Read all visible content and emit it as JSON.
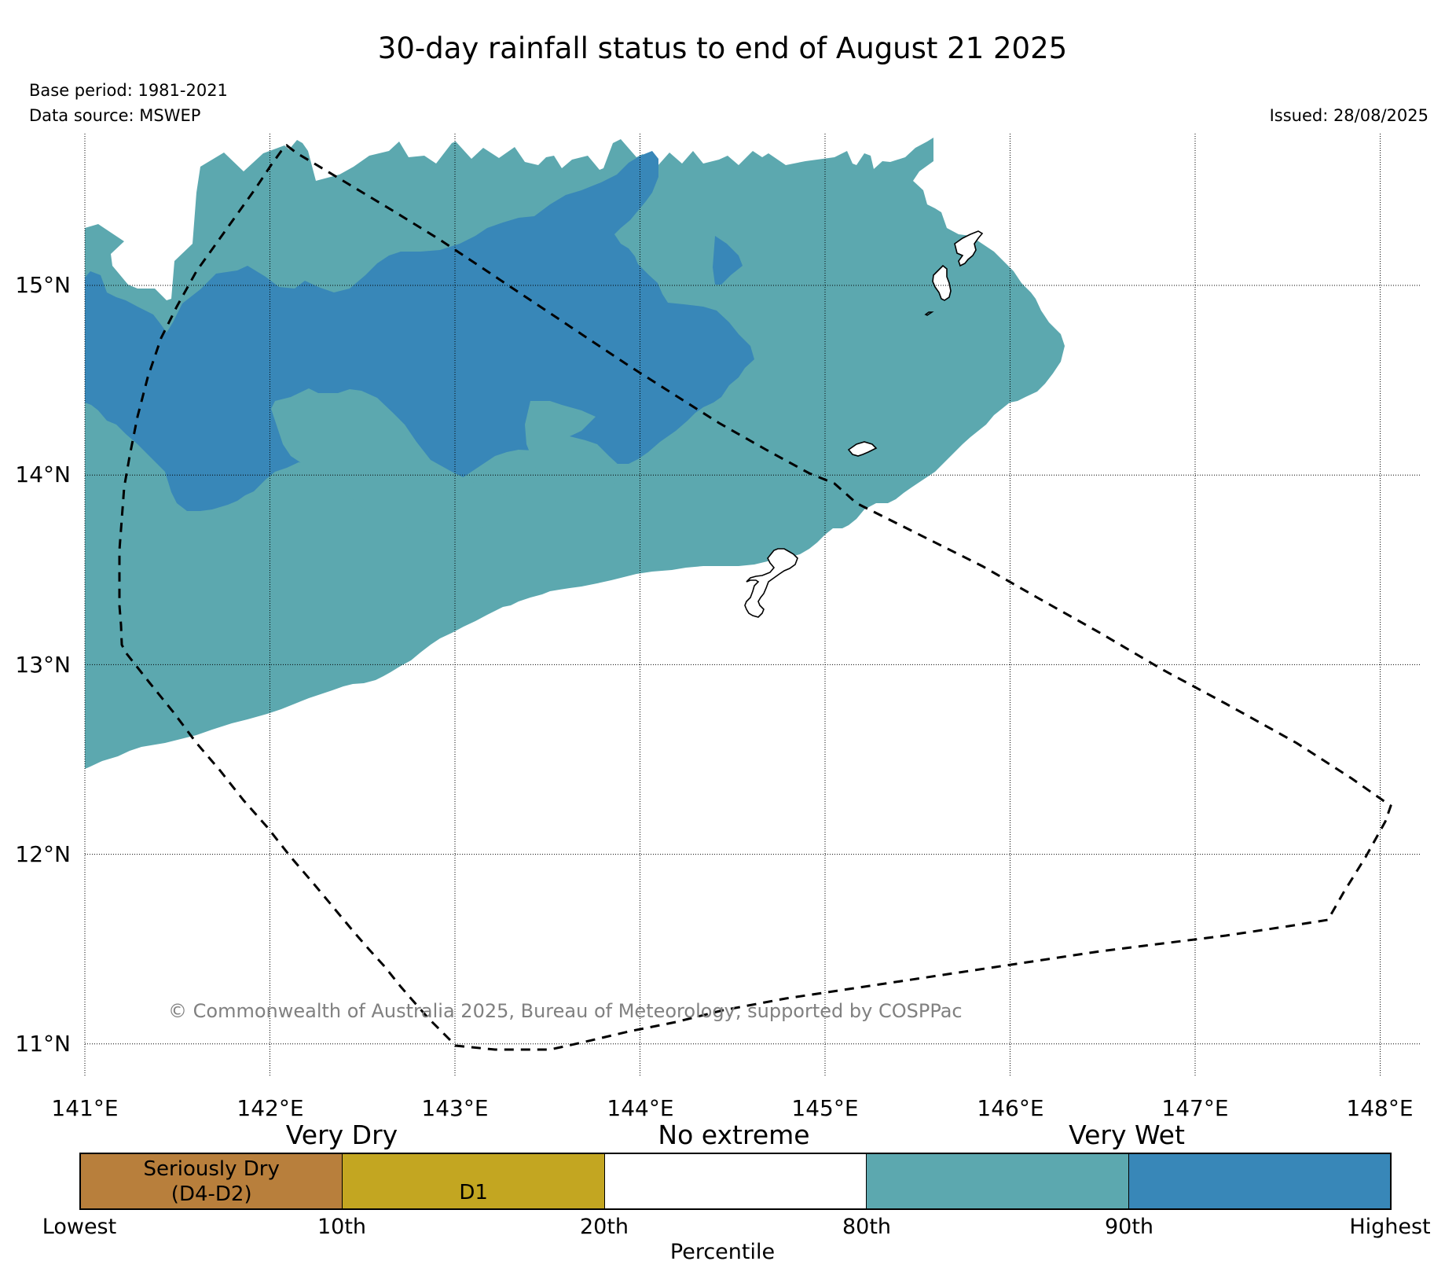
{
  "header": {
    "title": "30-day rainfall status to end of August 21 2025",
    "base_period": "Base period: 1981-2021",
    "data_source": "Data source: MSWEP",
    "issued": "Issued: 28/08/2025"
  },
  "map": {
    "latitude_labels": [
      "15°N",
      "14°N",
      "13°N",
      "12°N",
      "11°N"
    ],
    "longitude_labels": [
      "141°E",
      "142°E",
      "143°E",
      "144°E",
      "145°E",
      "146°E",
      "147°E",
      "148°E"
    ],
    "lon_range": [
      141,
      148.2
    ],
    "lat_range": [
      10.9,
      15.8
    ],
    "gridlines": true,
    "copyright": "© Commonwealth of Australia 2025, Bureau of Meteorology, supported by COSPPac",
    "colors": {
      "very_wet_80_90": "#5ca8af",
      "very_wet_90_highest": "#3887b8",
      "boundary": "#000000",
      "coastline": "#000000"
    }
  },
  "legend": {
    "categories": [
      "Very Dry",
      "No extreme",
      "Very Wet"
    ],
    "segments": [
      {
        "label": "Seriously Dry\n(D4-D2)",
        "color": "#b87f3c"
      },
      {
        "label": "D1",
        "color": "#c3a621"
      },
      {
        "label": "",
        "color": "#ffffff"
      },
      {
        "label": "",
        "color": "#5ca8af"
      },
      {
        "label": "",
        "color": "#3887b8"
      }
    ],
    "ticks": [
      "Lowest",
      "10th",
      "20th",
      "80th",
      "90th",
      "Highest"
    ],
    "axis_label": "Percentile"
  }
}
